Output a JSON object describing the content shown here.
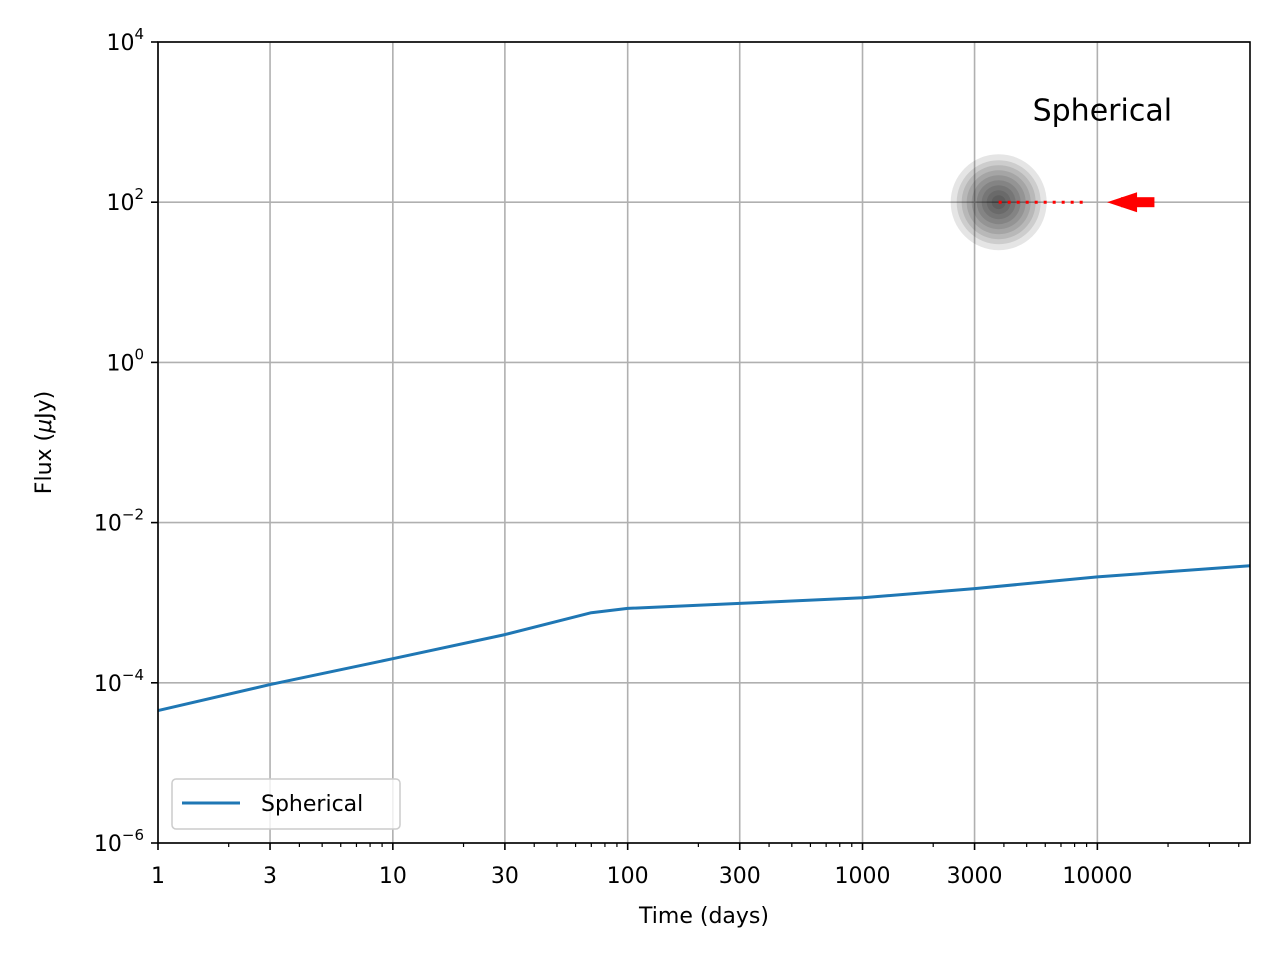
{
  "chart_data": {
    "type": "line",
    "title": "",
    "xlabel": "Time (days)",
    "ylabel_prefix": "Flux (",
    "ylabel_mu": "μ",
    "ylabel_suffix": "Jy)",
    "xscale": "log",
    "yscale": "log",
    "xlim": [
      1,
      44668
    ],
    "ylim": [
      1e-06,
      10000
    ],
    "grid": true,
    "x_tick_values": [
      1,
      3,
      10,
      30,
      100,
      300,
      1000,
      3000,
      10000
    ],
    "x_tick_labels": [
      "1",
      "3",
      "10",
      "30",
      "100",
      "300",
      "1000",
      "3000",
      "10000"
    ],
    "y_tick_values": [
      1e-06,
      0.0001,
      0.01,
      1,
      100,
      10000
    ],
    "y_tick_labels": [
      {
        "base": "10",
        "exp": "−6"
      },
      {
        "base": "10",
        "exp": "−4"
      },
      {
        "base": "10",
        "exp": "−2"
      },
      {
        "base": "10",
        "exp": "0"
      },
      {
        "base": "10",
        "exp": "2"
      },
      {
        "base": "10",
        "exp": "4"
      }
    ],
    "series": [
      {
        "name": "Spherical",
        "color": "#1f77b4",
        "x": [
          1,
          3,
          10,
          30,
          70,
          100,
          300,
          1000,
          3000,
          10000,
          44668
        ],
        "y": [
          4.5e-05,
          9.5e-05,
          0.0002,
          0.0004,
          0.00075,
          0.00085,
          0.00098,
          0.00115,
          0.0015,
          0.0021,
          0.0029
        ]
      }
    ],
    "legend": {
      "position": "lower-left",
      "entries": [
        "Spherical"
      ]
    },
    "annotations": [
      {
        "text": "Spherical",
        "x": 10500,
        "y": 1400
      }
    ],
    "inset_marker": {
      "blob_center": {
        "x": 3800,
        "y": 100
      },
      "dotted_line_x": [
        3800,
        9000
      ],
      "arrow_x": [
        17500,
        11000
      ],
      "y": 100,
      "blob_color": "#000000",
      "line_color": "#ff0000",
      "arrow_color": "#ff0000"
    }
  }
}
